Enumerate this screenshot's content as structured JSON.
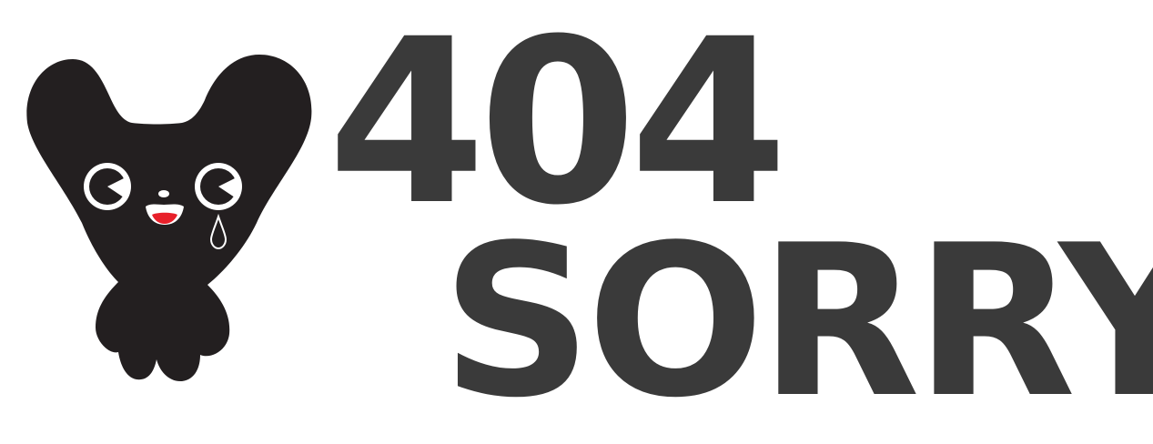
{
  "error": {
    "code": "404",
    "message": "SORRY"
  },
  "colors": {
    "text": "#3a3a3a",
    "mascot_body": "#231f20",
    "mouth": "#e8202a",
    "background": "#ffffff"
  },
  "icons": {
    "mascot": "crying-mascot-icon"
  }
}
